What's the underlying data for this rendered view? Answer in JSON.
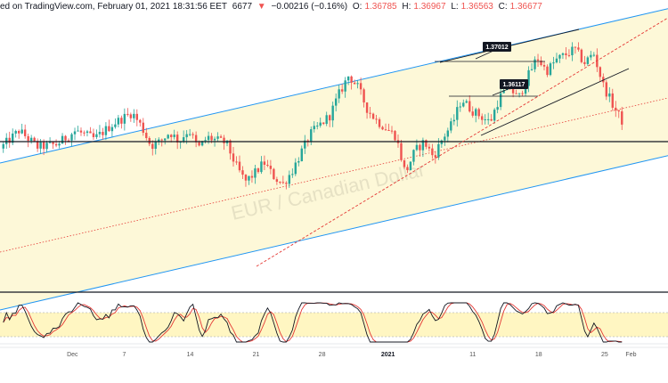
{
  "header": {
    "publisher": "ed on TradingView.com, February 01, 2021 18:31:56 EET",
    "price_start": "6677",
    "arrow": "▼",
    "change": "−0.00216 (−0.16%)",
    "open_label": "O:",
    "open_value": "1.36785",
    "high_label": "H:",
    "high_value": "1.36967",
    "low_label": "L:",
    "low_value": "1.36563",
    "close_label": "C:",
    "close_value": "1.36677"
  },
  "annotations": {
    "upper_level": "1.37012",
    "lower_level": "1.36117"
  },
  "watermark": "EUR / Canadian Dollar",
  "colors": {
    "channel_fill": "#fdf8d8",
    "channel_line": "#2196f3",
    "up_candle": "#26a69a",
    "down_candle": "#ef5350",
    "trend_dashed": "#e53935",
    "stoch_band": "#fff6c2",
    "stoch_k": "#131722",
    "stoch_d": "#e53935"
  },
  "chart_data": {
    "type": "candlestick",
    "title": "",
    "xlabel": "",
    "ylabel": "",
    "x_ticks": [
      "Dec",
      "7",
      "14",
      "21",
      "28",
      "2021",
      "11",
      "18",
      "25",
      "Feb"
    ],
    "ylim": [
      1.362,
      1.371
    ],
    "x_range_days": [
      0,
      66
    ],
    "last_ohlc": {
      "open": 1.36785,
      "high": 1.36967,
      "low": 1.36563,
      "close": 1.36677
    },
    "horizontal_levels": [
      1.37012,
      1.36117
    ],
    "indicator": {
      "type": "stochastic",
      "upper_band": 80,
      "lower_band": 20
    },
    "price_path": [
      [
        0,
        0.52
      ],
      [
        2,
        0.585
      ],
      [
        4,
        0.525
      ],
      [
        6,
        0.535
      ],
      [
        8,
        0.585
      ],
      [
        10,
        0.555
      ],
      [
        12,
        0.61
      ],
      [
        14,
        0.65
      ],
      [
        15,
        0.6
      ],
      [
        16,
        0.53
      ],
      [
        17,
        0.545
      ],
      [
        18,
        0.58
      ],
      [
        19,
        0.545
      ],
      [
        20,
        0.59
      ],
      [
        21,
        0.52
      ],
      [
        22,
        0.56
      ],
      [
        24,
        0.54
      ],
      [
        25,
        0.46
      ],
      [
        26,
        0.4
      ],
      [
        27,
        0.43
      ],
      [
        28,
        0.47
      ],
      [
        29,
        0.42
      ],
      [
        30,
        0.39
      ],
      [
        31,
        0.44
      ],
      [
        32,
        0.51
      ],
      [
        33,
        0.575
      ],
      [
        35,
        0.64
      ],
      [
        36,
        0.72
      ],
      [
        37,
        0.785
      ],
      [
        38,
        0.74
      ],
      [
        39,
        0.66
      ],
      [
        40,
        0.62
      ],
      [
        42,
        0.565
      ],
      [
        43,
        0.43
      ],
      [
        44,
        0.51
      ],
      [
        45,
        0.545
      ],
      [
        46,
        0.49
      ],
      [
        47,
        0.56
      ],
      [
        48,
        0.61
      ],
      [
        49,
        0.7
      ],
      [
        50,
        0.66
      ],
      [
        52,
        0.615
      ],
      [
        53,
        0.705
      ],
      [
        54,
        0.745
      ],
      [
        55,
        0.7
      ],
      [
        56,
        0.78
      ],
      [
        57,
        0.85
      ],
      [
        58,
        0.8
      ],
      [
        59,
        0.84
      ],
      [
        61,
        0.88
      ],
      [
        62,
        0.83
      ],
      [
        63,
        0.865
      ],
      [
        64,
        0.75
      ],
      [
        65,
        0.68
      ],
      [
        66,
        0.62
      ]
    ]
  }
}
